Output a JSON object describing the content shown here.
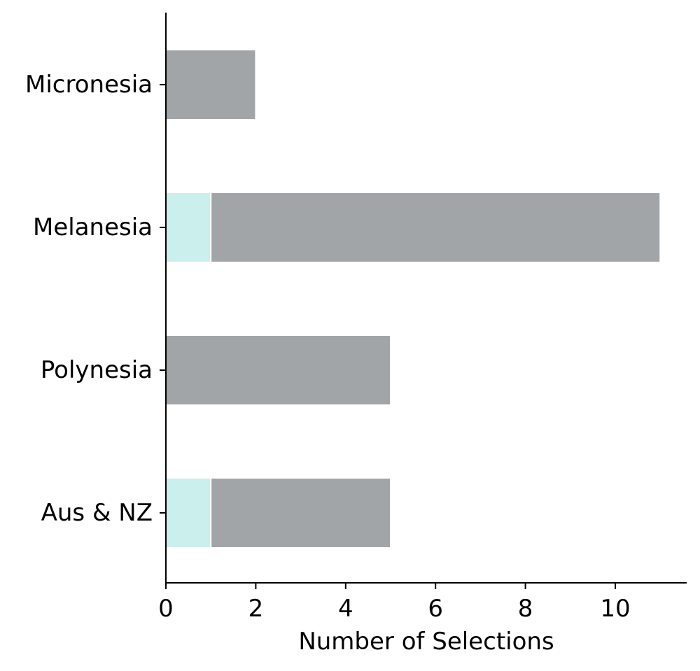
{
  "chart_data": {
    "type": "bar",
    "orientation": "horizontal",
    "stacked": true,
    "title": "",
    "xlabel": "Number of Selections",
    "ylabel": "",
    "categories": [
      "Micronesia",
      "Melanesia",
      "Polynesia",
      "Aus & NZ"
    ],
    "series": [
      {
        "values": [
          0,
          1,
          0,
          1
        ],
        "color": "#cbefec"
      },
      {
        "values": [
          2,
          10,
          5,
          4
        ],
        "color": "#a2a5a7"
      }
    ],
    "xlim": [
      0,
      11.55
    ],
    "xticks": [
      "0",
      "2",
      "4",
      "6",
      "8",
      "10"
    ],
    "xtick_values": [
      0,
      2,
      4,
      6,
      8,
      10
    ],
    "grid": false,
    "legend": "none"
  }
}
